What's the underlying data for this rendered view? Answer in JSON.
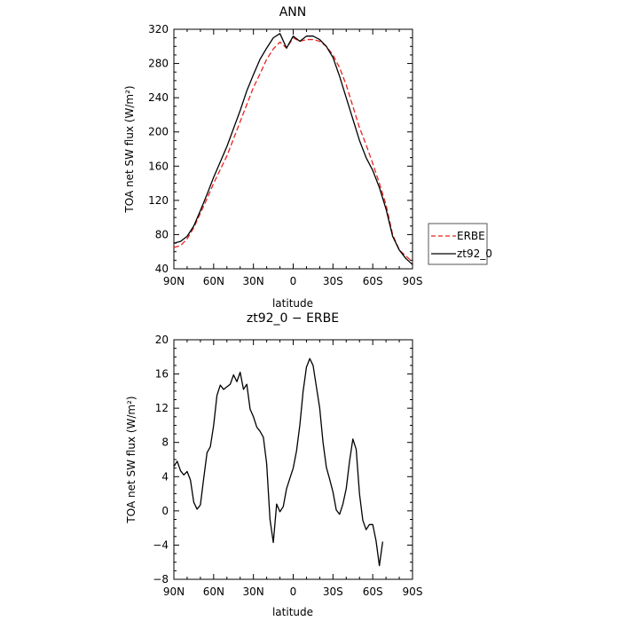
{
  "chart_data": [
    {
      "type": "line",
      "title": "ANN",
      "xlabel": "latitude",
      "ylabel": "TOA net SW flux (W/m²)",
      "xlim": [
        -90,
        90
      ],
      "ylim": [
        40,
        320
      ],
      "x_ticks": [
        {
          "value": -90,
          "label": "90N"
        },
        {
          "value": -60,
          "label": "60N"
        },
        {
          "value": -30,
          "label": "30N"
        },
        {
          "value": 0,
          "label": "0"
        },
        {
          "value": 30,
          "label": "30S"
        },
        {
          "value": 60,
          "label": "60S"
        },
        {
          "value": 90,
          "label": "90S"
        }
      ],
      "y_ticks": [
        40,
        80,
        120,
        160,
        200,
        240,
        280,
        320
      ],
      "legend_position": "right",
      "series": [
        {
          "name": "ERBE",
          "color": "#e8231f",
          "dash": "dashed",
          "points": [
            [
              -90,
              65
            ],
            [
              -85,
              67
            ],
            [
              -80,
              75
            ],
            [
              -75,
              88
            ],
            [
              -70,
              105
            ],
            [
              -65,
              122
            ],
            [
              -60,
              140
            ],
            [
              -55,
              156
            ],
            [
              -50,
              172
            ],
            [
              -45,
              192
            ],
            [
              -40,
              212
            ],
            [
              -35,
              232
            ],
            [
              -30,
              252
            ],
            [
              -25,
              268
            ],
            [
              -20,
              285
            ],
            [
              -15,
              297
            ],
            [
              -10,
              305
            ],
            [
              -5,
              298
            ],
            [
              0,
              310
            ],
            [
              5,
              306
            ],
            [
              10,
              308
            ],
            [
              15,
              308
            ],
            [
              20,
              306
            ],
            [
              25,
              300
            ],
            [
              30,
              290
            ],
            [
              35,
              275
            ],
            [
              40,
              255
            ],
            [
              45,
              230
            ],
            [
              50,
              205
            ],
            [
              55,
              185
            ],
            [
              60,
              163
            ],
            [
              65,
              140
            ],
            [
              70,
              115
            ],
            [
              75,
              80
            ],
            [
              80,
              62
            ],
            [
              85,
              55
            ],
            [
              90,
              48
            ]
          ]
        },
        {
          "name": "zt92_0",
          "color": "#000000",
          "dash": "solid",
          "points": [
            [
              -90,
              70
            ],
            [
              -85,
              72
            ],
            [
              -80,
              78
            ],
            [
              -75,
              90
            ],
            [
              -70,
              108
            ],
            [
              -65,
              127
            ],
            [
              -60,
              147
            ],
            [
              -55,
              165
            ],
            [
              -50,
              183
            ],
            [
              -45,
              204
            ],
            [
              -40,
              225
            ],
            [
              -35,
              248
            ],
            [
              -30,
              267
            ],
            [
              -25,
              285
            ],
            [
              -20,
              298
            ],
            [
              -15,
              310
            ],
            [
              -10,
              315
            ],
            [
              -5,
              298
            ],
            [
              0,
              312
            ],
            [
              5,
              306
            ],
            [
              10,
              312
            ],
            [
              15,
              312
            ],
            [
              20,
              308
            ],
            [
              25,
              300
            ],
            [
              30,
              287
            ],
            [
              35,
              265
            ],
            [
              40,
              240
            ],
            [
              45,
              215
            ],
            [
              50,
              190
            ],
            [
              55,
              170
            ],
            [
              60,
              155
            ],
            [
              65,
              135
            ],
            [
              70,
              110
            ],
            [
              75,
              78
            ],
            [
              80,
              62
            ],
            [
              85,
              52
            ],
            [
              90,
              45
            ]
          ]
        }
      ]
    },
    {
      "type": "line",
      "title": "zt92_0 − ERBE",
      "xlabel": "latitude",
      "ylabel": "TOA net SW flux (W/m²)",
      "xlim": [
        -90,
        90
      ],
      "ylim": [
        -8,
        20
      ],
      "x_ticks": [
        {
          "value": -90,
          "label": "90N"
        },
        {
          "value": -60,
          "label": "60N"
        },
        {
          "value": -30,
          "label": "30N"
        },
        {
          "value": 0,
          "label": "0"
        },
        {
          "value": 30,
          "label": "30S"
        },
        {
          "value": 60,
          "label": "60S"
        },
        {
          "value": 90,
          "label": "90S"
        }
      ],
      "y_ticks": [
        -8,
        -4,
        0,
        4,
        8,
        12,
        16,
        20
      ],
      "series": [
        {
          "color": "#000000",
          "dash": "solid",
          "points": [
            [
              -90,
              5.2
            ],
            [
              -87.5,
              5.8
            ],
            [
              -85,
              4.7
            ],
            [
              -82.5,
              4.2
            ],
            [
              -80,
              4.6
            ],
            [
              -77.5,
              3.6
            ],
            [
              -75,
              1.0
            ],
            [
              -72.5,
              0.2
            ],
            [
              -70,
              0.7
            ],
            [
              -67.5,
              3.8
            ],
            [
              -65,
              6.8
            ],
            [
              -62.5,
              7.5
            ],
            [
              -60,
              10.0
            ],
            [
              -57.5,
              13.5
            ],
            [
              -55,
              14.7
            ],
            [
              -52.5,
              14.2
            ],
            [
              -50,
              14.5
            ],
            [
              -47.5,
              14.8
            ],
            [
              -45,
              15.9
            ],
            [
              -42.5,
              15.1
            ],
            [
              -40,
              16.2
            ],
            [
              -37.5,
              14.2
            ],
            [
              -35,
              14.8
            ],
            [
              -32.5,
              11.9
            ],
            [
              -30,
              11.0
            ],
            [
              -27.5,
              9.8
            ],
            [
              -25,
              9.3
            ],
            [
              -22.5,
              8.6
            ],
            [
              -20,
              5.5
            ],
            [
              -17.5,
              -1.0
            ],
            [
              -15,
              -3.7
            ],
            [
              -12.5,
              0.8
            ],
            [
              -10,
              -0.1
            ],
            [
              -7.5,
              0.5
            ],
            [
              -5,
              2.6
            ],
            [
              -2.5,
              3.8
            ],
            [
              0,
              5.0
            ],
            [
              2.5,
              7.0
            ],
            [
              5,
              10.0
            ],
            [
              7.5,
              14.0
            ],
            [
              10,
              16.8
            ],
            [
              12.5,
              17.8
            ],
            [
              15,
              17.0
            ],
            [
              17.5,
              14.5
            ],
            [
              20,
              12.0
            ],
            [
              22.5,
              8.0
            ],
            [
              25,
              5.1
            ],
            [
              27.5,
              3.7
            ],
            [
              30,
              2.2
            ],
            [
              32.5,
              0.1
            ],
            [
              35,
              -0.4
            ],
            [
              37.5,
              0.8
            ],
            [
              40,
              2.6
            ],
            [
              42.5,
              5.8
            ],
            [
              45,
              8.4
            ],
            [
              47.5,
              7.2
            ],
            [
              50,
              2.0
            ],
            [
              52.5,
              -1.1
            ],
            [
              55,
              -2.2
            ],
            [
              57.5,
              -1.6
            ],
            [
              60,
              -1.6
            ],
            [
              62.5,
              -3.5
            ],
            [
              65,
              -6.4
            ],
            [
              67.5,
              -3.6
            ]
          ]
        }
      ]
    }
  ]
}
